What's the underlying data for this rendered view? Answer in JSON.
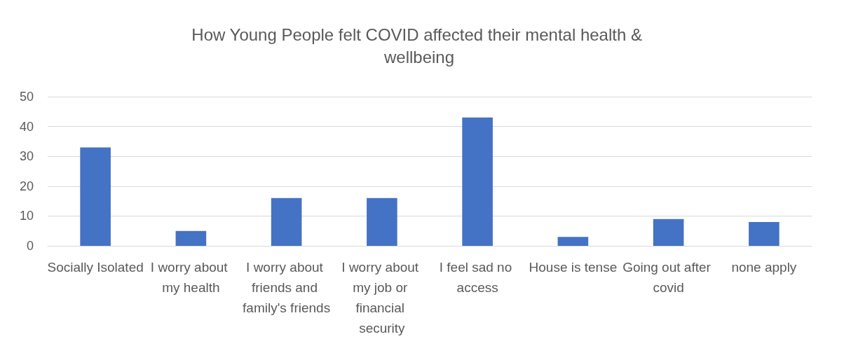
{
  "chart_data": {
    "type": "bar",
    "title": "How Young People felt COVID affected their mental health & wellbeing",
    "categories": [
      "Socially Isolated",
      "I worry about my health",
      "I worry about friends and family's friends",
      "I worry about my job or financial security",
      "I feel sad no access",
      "House is tense",
      "Going out after covid",
      "none apply"
    ],
    "values": [
      33,
      5,
      16,
      16,
      43,
      3,
      9,
      8
    ],
    "color": "#4472c4",
    "ylim": [
      0,
      50
    ],
    "yticks": [
      0,
      10,
      20,
      30,
      40,
      50
    ],
    "grid": "y"
  }
}
